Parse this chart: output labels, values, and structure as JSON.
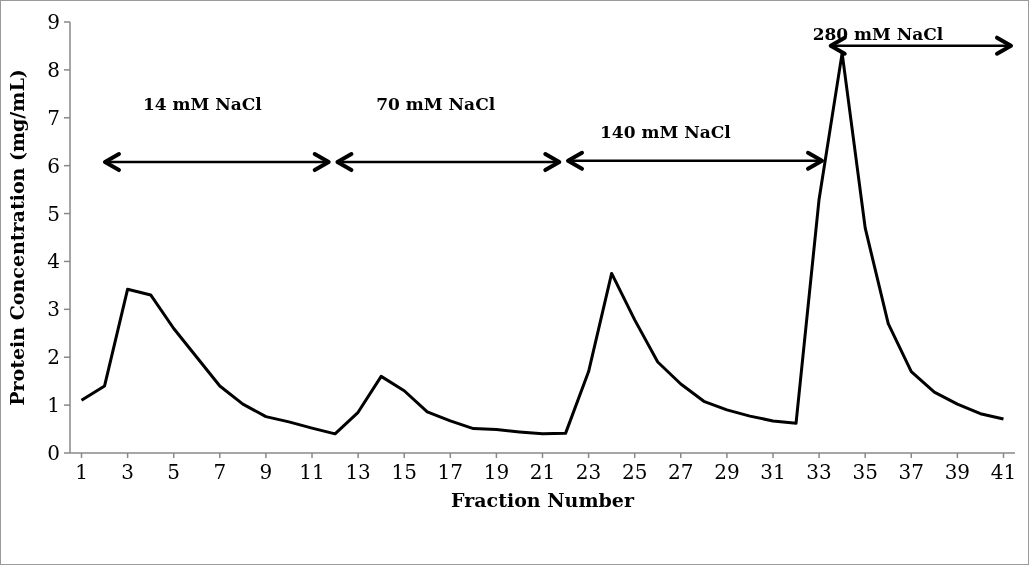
{
  "chart_data": {
    "type": "line",
    "xlabel": "Fraction Number",
    "ylabel": "Protein Concentration (mg/mL)",
    "x": [
      1,
      2,
      3,
      4,
      5,
      6,
      7,
      8,
      9,
      10,
      11,
      12,
      13,
      14,
      15,
      16,
      17,
      18,
      19,
      20,
      21,
      22,
      23,
      24,
      25,
      26,
      27,
      28,
      29,
      30,
      31,
      32,
      33,
      34,
      35,
      36,
      37,
      38,
      39,
      40,
      41
    ],
    "series": [
      {
        "color": "#000000",
        "values": [
          1.1,
          1.4,
          3.42,
          3.3,
          2.6,
          2.0,
          1.4,
          1.02,
          0.76,
          0.65,
          0.52,
          0.4,
          0.85,
          1.6,
          1.3,
          0.86,
          0.67,
          0.51,
          0.49,
          0.44,
          0.4,
          0.41,
          1.7,
          3.75,
          2.78,
          1.9,
          1.44,
          1.08,
          0.9,
          0.77,
          0.67,
          0.62,
          5.3,
          8.35,
          4.7,
          2.7,
          1.7,
          1.27,
          1.02,
          0.82,
          0.71
        ]
      }
    ],
    "xlim": [
      0.5,
      41.5
    ],
    "xticks": [
      1,
      3,
      5,
      7,
      9,
      11,
      13,
      15,
      17,
      19,
      21,
      23,
      25,
      27,
      29,
      31,
      33,
      35,
      37,
      39,
      41
    ],
    "ylim": [
      0,
      9
    ],
    "yticks": [
      0,
      1,
      2,
      3,
      4,
      5,
      6,
      7,
      8,
      9
    ],
    "annotations": [
      "14 mM NaCl",
      "70 mM NaCl",
      "140 mM NaCl",
      "280 mM NaCl"
    ],
    "grid": false,
    "marker": "none",
    "line_style": "solid"
  }
}
